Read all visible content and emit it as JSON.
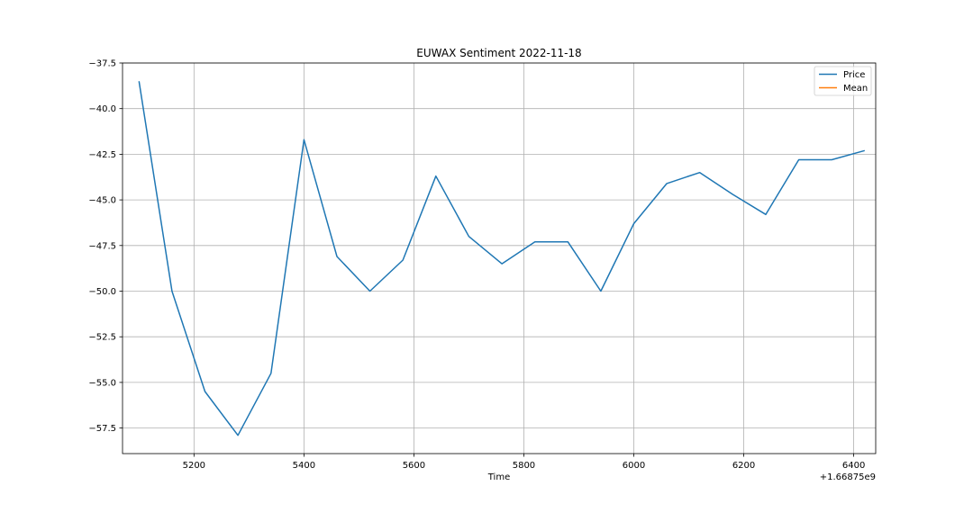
{
  "chart_data": {
    "type": "line",
    "title": "EUWAX Sentiment 2022-11-18",
    "xlabel": "Time",
    "ylabel": "",
    "x_offset_label": "+1.66875e9",
    "xlim": [
      5070,
      6440
    ],
    "ylim": [
      -58.9,
      -37.5
    ],
    "x_ticks": [
      5200,
      5400,
      5600,
      5800,
      6000,
      6200,
      6400
    ],
    "y_ticks": [
      -57.5,
      -55.0,
      -52.5,
      -50.0,
      -47.5,
      -45.0,
      -42.5,
      -40.0,
      -37.5
    ],
    "x_tick_labels": [
      "5200",
      "5400",
      "5600",
      "5800",
      "6000",
      "6200",
      "6400"
    ],
    "y_tick_labels": [
      "−57.5",
      "−55.0",
      "−52.5",
      "−50.0",
      "−47.5",
      "−45.0",
      "−42.5",
      "−40.0",
      "−37.5"
    ],
    "grid": true,
    "legend_position": "top-right",
    "series": [
      {
        "name": "Price",
        "color": "#1f77b4",
        "x": [
          5100,
          5160,
          5220,
          5280,
          5340,
          5400,
          5460,
          5520,
          5580,
          5640,
          5700,
          5760,
          5820,
          5880,
          5940,
          6000,
          6060,
          6120,
          6180,
          6240,
          6300,
          6360,
          6420
        ],
        "y": [
          -38.5,
          -50.0,
          -55.5,
          -57.9,
          -54.5,
          -41.7,
          -48.1,
          -50.0,
          -48.3,
          -43.7,
          -47.0,
          -48.5,
          -47.3,
          -47.3,
          -50.0,
          -46.3,
          -44.1,
          -43.5,
          -44.7,
          -45.8,
          -42.8,
          -42.8,
          -42.3
        ]
      },
      {
        "name": "Mean",
        "color": "#ff7f0e",
        "x": [],
        "y": []
      }
    ]
  }
}
